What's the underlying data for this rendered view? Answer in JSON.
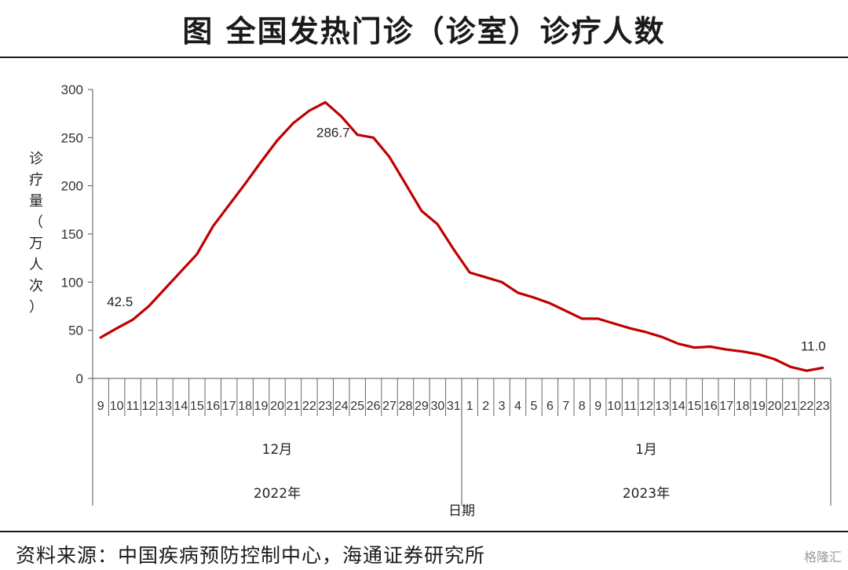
{
  "title": "图 全国发热门诊（诊室）诊疗人数",
  "source": "资料来源：中国疾病预防控制中心，海通证券研究所",
  "watermark": "格隆汇",
  "chart_data": {
    "type": "line",
    "ylabel": "诊疗量（万人次）",
    "xlabel": "日期",
    "ylim": [
      0,
      300
    ],
    "yticks": [
      0,
      50,
      100,
      150,
      200,
      250,
      300
    ],
    "line_color": "#c00000",
    "grid": false,
    "categories": [
      "9",
      "10",
      "11",
      "12",
      "13",
      "14",
      "15",
      "16",
      "17",
      "18",
      "19",
      "20",
      "21",
      "22",
      "23",
      "24",
      "25",
      "26",
      "27",
      "28",
      "29",
      "30",
      "31",
      "1",
      "2",
      "3",
      "4",
      "5",
      "6",
      "7",
      "8",
      "9",
      "10",
      "11",
      "12",
      "13",
      "14",
      "15",
      "16",
      "17",
      "18",
      "19",
      "20",
      "21",
      "22",
      "23"
    ],
    "values": [
      42.5,
      52,
      61,
      75,
      93,
      111,
      129,
      158,
      180,
      202,
      225,
      247,
      265,
      278,
      286.7,
      272,
      253,
      250,
      230,
      202,
      174,
      160,
      134,
      110,
      105,
      100,
      89,
      84,
      78,
      70,
      62,
      62,
      57,
      52,
      48,
      43,
      36,
      32,
      33,
      30,
      28,
      25,
      20,
      12,
      8,
      11.0
    ],
    "month_groups": [
      {
        "label": "12月",
        "count": 23
      },
      {
        "label": "1月",
        "count": 23
      }
    ],
    "year_groups": [
      {
        "label": "2022年",
        "count": 23
      },
      {
        "label": "2023年",
        "count": 23
      }
    ],
    "annotations": [
      {
        "index": 0,
        "text": "42.5"
      },
      {
        "index": 14,
        "text": "286.7"
      },
      {
        "index": 45,
        "text": "11.0"
      }
    ]
  }
}
